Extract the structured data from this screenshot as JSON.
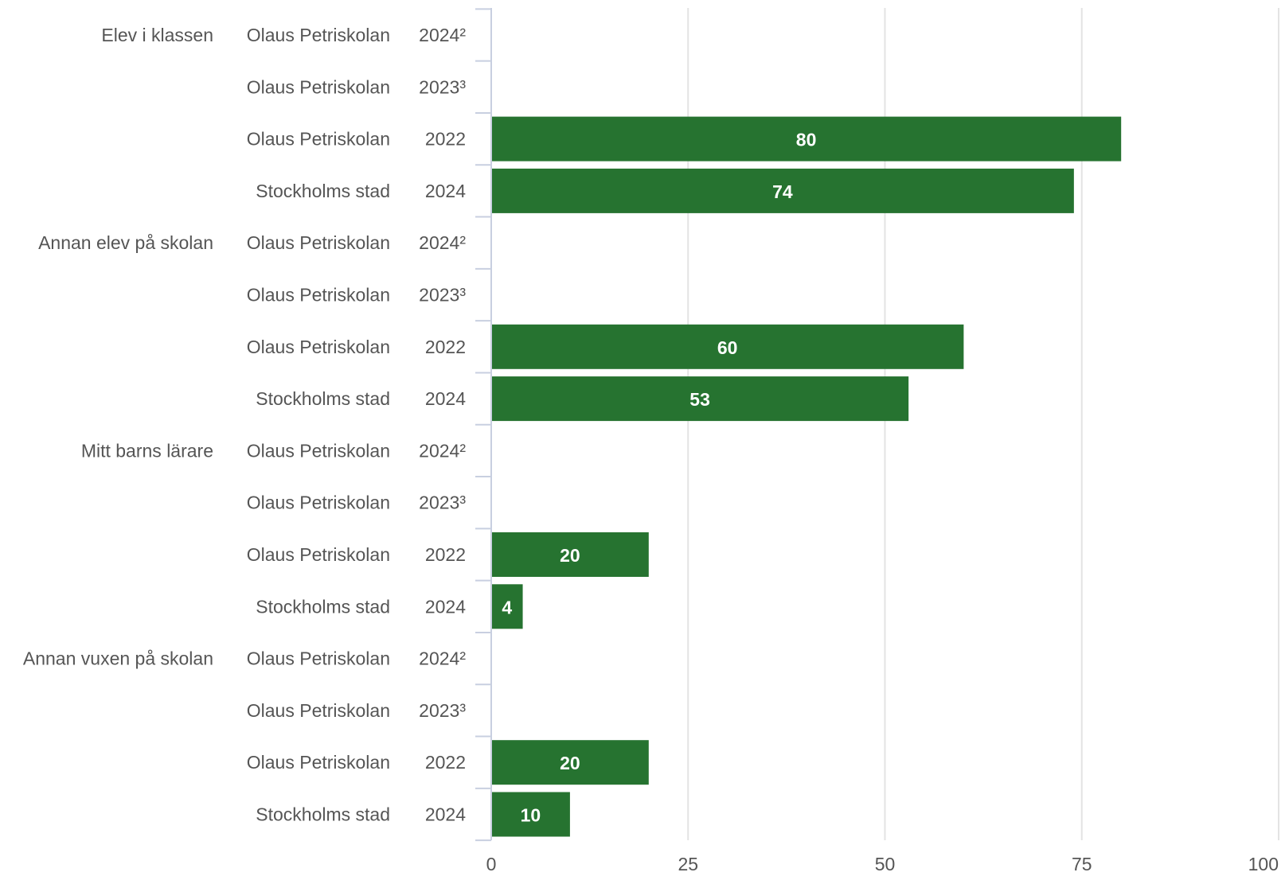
{
  "chart_data": {
    "type": "bar",
    "orientation": "horizontal",
    "xlim": [
      0,
      100
    ],
    "x_ticks": [
      0,
      25,
      50,
      75,
      100
    ],
    "x_tick_labels": [
      "0",
      "25",
      "50",
      "75",
      "100"
    ],
    "grid": true,
    "bar_color": "#267330",
    "footnote": "",
    "groups": [
      {
        "name": "Elev i klassen",
        "rows": [
          {
            "entity": "Olaus Petriskolan",
            "year": "2024²",
            "value": null
          },
          {
            "entity": "Olaus Petriskolan",
            "year": "2023³",
            "value": null
          },
          {
            "entity": "Olaus Petriskolan",
            "year": "2022",
            "value": 80
          },
          {
            "entity": "Stockholms stad",
            "year": "2024",
            "value": 74
          }
        ]
      },
      {
        "name": "Annan elev på skolan",
        "rows": [
          {
            "entity": "Olaus Petriskolan",
            "year": "2024²",
            "value": null
          },
          {
            "entity": "Olaus Petriskolan",
            "year": "2023³",
            "value": null
          },
          {
            "entity": "Olaus Petriskolan",
            "year": "2022",
            "value": 60
          },
          {
            "entity": "Stockholms stad",
            "year": "2024",
            "value": 53
          }
        ]
      },
      {
        "name": "Mitt barns lärare",
        "rows": [
          {
            "entity": "Olaus Petriskolan",
            "year": "2024²",
            "value": null
          },
          {
            "entity": "Olaus Petriskolan",
            "year": "2023³",
            "value": null
          },
          {
            "entity": "Olaus Petriskolan",
            "year": "2022",
            "value": 20
          },
          {
            "entity": "Stockholms stad",
            "year": "2024",
            "value": 4
          }
        ]
      },
      {
        "name": "Annan vuxen på skolan",
        "rows": [
          {
            "entity": "Olaus Petriskolan",
            "year": "2024²",
            "value": null
          },
          {
            "entity": "Olaus Petriskolan",
            "year": "2023³",
            "value": null
          },
          {
            "entity": "Olaus Petriskolan",
            "year": "2022",
            "value": 20
          },
          {
            "entity": "Stockholms stad",
            "year": "2024",
            "value": 10
          }
        ]
      }
    ]
  }
}
